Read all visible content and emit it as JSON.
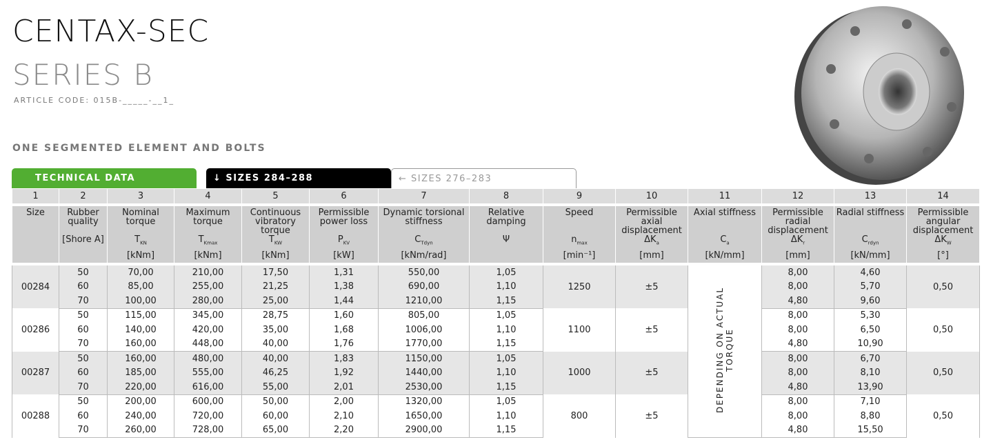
{
  "title": "CENTAX-SEC",
  "series": "SERIES B",
  "article_code": "ARTICLE CODE: 015B-_____-__1_",
  "subtitle": "ONE SEGMENTED ELEMENT AND BOLTS",
  "tabs": [
    {
      "label": "TECHNICAL DATA"
    },
    {
      "label": "↓ SIZES 284–288"
    },
    {
      "label": "← SIZES 276–283"
    }
  ],
  "columns": [
    {
      "n": "1",
      "name": "Size",
      "sym": "",
      "symsub": "",
      "unit": ""
    },
    {
      "n": "2",
      "name": "Rubber quality",
      "sym": "[Shore A]",
      "symsub": "",
      "unit": ""
    },
    {
      "n": "3",
      "name": "Nominal torque",
      "sym": "T",
      "symsub": "KN",
      "unit": "[kNm]"
    },
    {
      "n": "4",
      "name": "Maximum torque",
      "sym": "T",
      "symsub": "Kmax",
      "unit": "[kNm]"
    },
    {
      "n": "5",
      "name": "Continuous vibratory torque",
      "sym": "T",
      "symsub": "KW",
      "unit": "[kNm]"
    },
    {
      "n": "6",
      "name": "Permissible power loss",
      "sym": "P",
      "symsub": "KV",
      "unit": "[kW]"
    },
    {
      "n": "7",
      "name": "Dynamic torsional stiffness",
      "sym": "C",
      "symsub": "Tdyn",
      "unit": "[kNm/rad]"
    },
    {
      "n": "8",
      "name": "Relative damping",
      "sym": "Ψ",
      "symsub": "",
      "unit": ""
    },
    {
      "n": "9",
      "name": "Speed",
      "sym": "n",
      "symsub": "max",
      "unit": "[min⁻¹]"
    },
    {
      "n": "10",
      "name": "Permissible axial displacement",
      "sym": "ΔK",
      "symsub": "a",
      "unit": "[mm]"
    },
    {
      "n": "11",
      "name": "Axial stiffness",
      "sym": "C",
      "symsub": "a",
      "unit": "[kN/mm]"
    },
    {
      "n": "12",
      "name": "Permissible radial displacement",
      "sym": "ΔK",
      "symsub": "r",
      "unit": "[mm]"
    },
    {
      "n": "13",
      "name": "Radial stiffness",
      "sym": "C",
      "symsub": "rdyn",
      "unit": "[kN/mm]"
    },
    {
      "n": "14",
      "name": "Permissible angular displacement",
      "sym": "ΔK",
      "symsub": "W",
      "unit": "[°]"
    }
  ],
  "axial_stiffness_note": "DEPENDING ON ACTUAL TORQUE",
  "groups": [
    {
      "size": "00284",
      "speed": "1250",
      "axial": "±5",
      "angular": "0,50",
      "rows": [
        [
          "50",
          "70,00",
          "210,00",
          "17,50",
          "1,31",
          "550,00",
          "1,05",
          "8,00",
          "4,60"
        ],
        [
          "60",
          "85,00",
          "255,00",
          "21,25",
          "1,38",
          "690,00",
          "1,10",
          "8,00",
          "5,70"
        ],
        [
          "70",
          "100,00",
          "280,00",
          "25,00",
          "1,44",
          "1210,00",
          "1,15",
          "4,80",
          "9,60"
        ]
      ]
    },
    {
      "size": "00286",
      "speed": "1100",
      "axial": "±5",
      "angular": "0,50",
      "rows": [
        [
          "50",
          "115,00",
          "345,00",
          "28,75",
          "1,60",
          "805,00",
          "1,05",
          "8,00",
          "5,30"
        ],
        [
          "60",
          "140,00",
          "420,00",
          "35,00",
          "1,68",
          "1006,00",
          "1,10",
          "8,00",
          "6,50"
        ],
        [
          "70",
          "160,00",
          "448,00",
          "40,00",
          "1,76",
          "1770,00",
          "1,15",
          "4,80",
          "10,90"
        ]
      ]
    },
    {
      "size": "00287",
      "speed": "1000",
      "axial": "±5",
      "angular": "0,50",
      "rows": [
        [
          "50",
          "160,00",
          "480,00",
          "40,00",
          "1,83",
          "1150,00",
          "1,05",
          "8,00",
          "6,70"
        ],
        [
          "60",
          "185,00",
          "555,00",
          "46,25",
          "1,92",
          "1440,00",
          "1,10",
          "8,00",
          "8,10"
        ],
        [
          "70",
          "220,00",
          "616,00",
          "55,00",
          "2,01",
          "2530,00",
          "1,15",
          "4,80",
          "13,90"
        ]
      ]
    },
    {
      "size": "00288",
      "speed": "800",
      "axial": "±5",
      "angular": "0,50",
      "rows": [
        [
          "50",
          "200,00",
          "600,00",
          "50,00",
          "2,00",
          "1320,00",
          "1,05",
          "8,00",
          "7,10"
        ],
        [
          "60",
          "240,00",
          "720,00",
          "60,00",
          "2,10",
          "1650,00",
          "1,10",
          "8,00",
          "8,80"
        ],
        [
          "70",
          "260,00",
          "728,00",
          "65,00",
          "2,20",
          "2900,00",
          "1,15",
          "4,80",
          "15,50"
        ]
      ]
    }
  ]
}
